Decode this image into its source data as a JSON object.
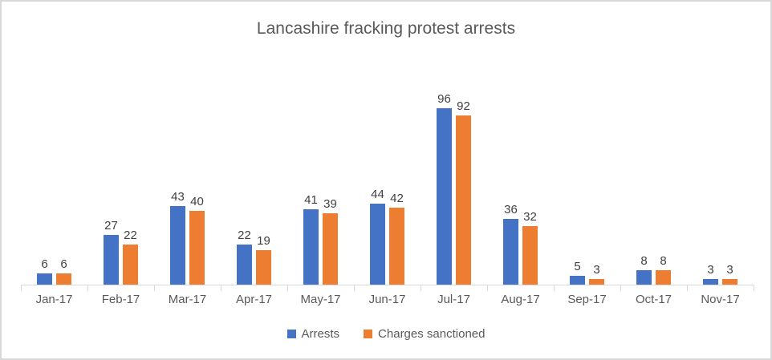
{
  "title": "Lancashire fracking protest arrests",
  "colors": {
    "arrests": "#4472C4",
    "charges_sanctioned": "#ED7D31",
    "axis_line": "#D9D9D9",
    "data_label": "#404040",
    "axis_label": "#595959",
    "title_text": "#595959",
    "frame_border": "#D8D8D8"
  },
  "chart_data": {
    "type": "bar",
    "title": "Lancashire fracking protest arrests",
    "categories": [
      "Jan-17",
      "Feb-17",
      "Mar-17",
      "Apr-17",
      "May-17",
      "Jun-17",
      "Jul-17",
      "Aug-17",
      "Sep-17",
      "Oct-17",
      "Nov-17"
    ],
    "series": [
      {
        "name": "Arrests",
        "color": "#4472C4",
        "values": [
          6,
          27,
          43,
          22,
          41,
          44,
          96,
          36,
          5,
          8,
          3
        ]
      },
      {
        "name": "Charges sanctioned",
        "color": "#ED7D31",
        "values": [
          6,
          22,
          40,
          19,
          39,
          42,
          92,
          32,
          3,
          8,
          3
        ]
      }
    ],
    "xlabel": "",
    "ylabel": "",
    "ylim": [
      0,
      100
    ],
    "grid": false,
    "y_axis_visible": false,
    "data_labels": true,
    "legend_position": "bottom"
  },
  "legend": {
    "items": [
      {
        "label": "Arrests",
        "color": "#4472C4"
      },
      {
        "label": "Charges sanctioned",
        "color": "#ED7D31"
      }
    ]
  }
}
